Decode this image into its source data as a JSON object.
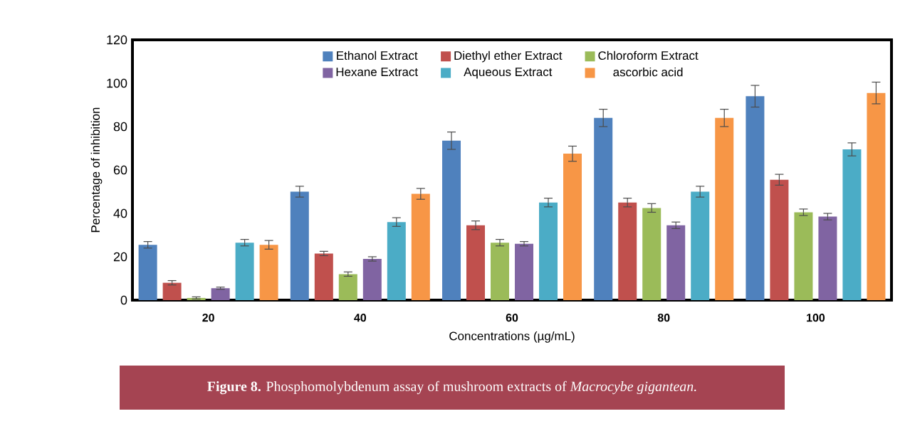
{
  "chart_data": {
    "type": "bar",
    "xlabel": "Concentrations (µg/mL)",
    "ylabel": "Percentage of inhibition",
    "categories": [
      "20",
      "40",
      "60",
      "80",
      "100"
    ],
    "series": [
      {
        "name": "Ethanol Extract",
        "color": "#4f81bd",
        "values": [
          25.5,
          50,
          73.5,
          84,
          94
        ],
        "errors": [
          1.5,
          2.5,
          4,
          4,
          5
        ]
      },
      {
        "name": "Diethyl ether Extract",
        "color": "#c0504d",
        "values": [
          8,
          21.5,
          34.5,
          45,
          55.5
        ],
        "errors": [
          1,
          1,
          2,
          2,
          2.5
        ]
      },
      {
        "name": "Chloroform Extract",
        "color": "#9bbb59",
        "values": [
          1,
          12,
          26.5,
          42.5,
          40.5
        ],
        "errors": [
          0.5,
          1,
          1.5,
          2,
          1.5
        ]
      },
      {
        "name": "Hexane Extract",
        "color": "#8064a2",
        "values": [
          5.5,
          19,
          26,
          34.5,
          38.5
        ],
        "errors": [
          0.5,
          1,
          1,
          1.5,
          1.5
        ]
      },
      {
        "name": "Aqueous Extract",
        "color": "#4bacc6",
        "values": [
          26.5,
          36,
          45,
          50,
          69.5
        ],
        "errors": [
          1.5,
          2,
          2,
          2.5,
          3
        ]
      },
      {
        "name": "ascorbic acid",
        "color": "#f79646",
        "values": [
          25.5,
          49,
          67.5,
          84,
          95.5
        ],
        "errors": [
          2,
          2.5,
          3.5,
          4,
          5
        ]
      }
    ],
    "ylim": [
      0,
      120
    ],
    "yticks": [
      0,
      20,
      40,
      60,
      80,
      100,
      120
    ],
    "legend": "top",
    "grid": false,
    "annotations": [
      "**Figure 8.** Phosphomolybdenum assay of mushroom extracts of *Macrocybe gigantean.*"
    ]
  }
}
